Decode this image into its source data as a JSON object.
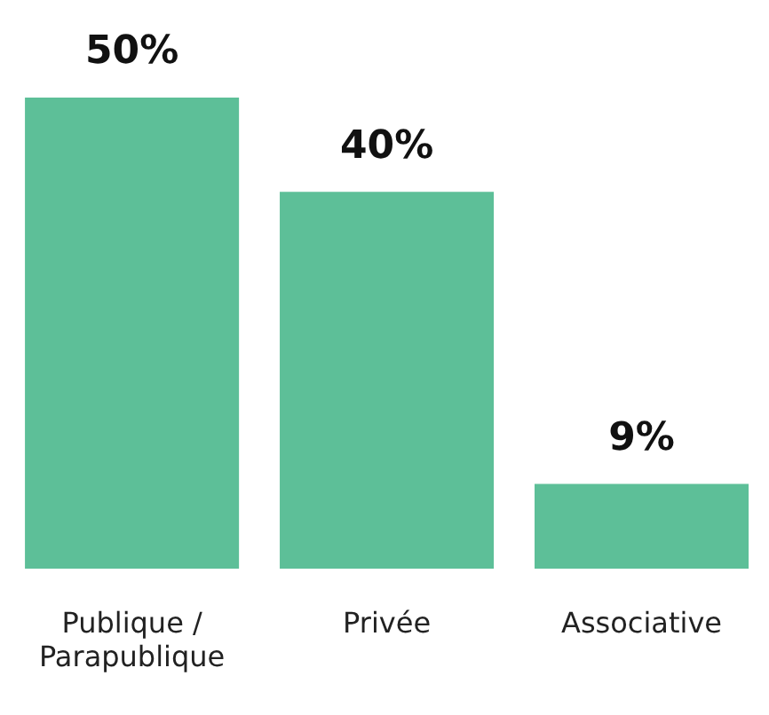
{
  "chart_data": {
    "type": "bar",
    "categories": [
      "Publique /\nParapublique",
      "Privée",
      "Associative"
    ],
    "values": [
      50,
      40,
      9
    ],
    "value_labels": [
      "50%",
      "40%",
      "9%"
    ],
    "color": "#5dbf98",
    "ylim": [
      0,
      50
    ],
    "grid": false,
    "legend": false
  }
}
